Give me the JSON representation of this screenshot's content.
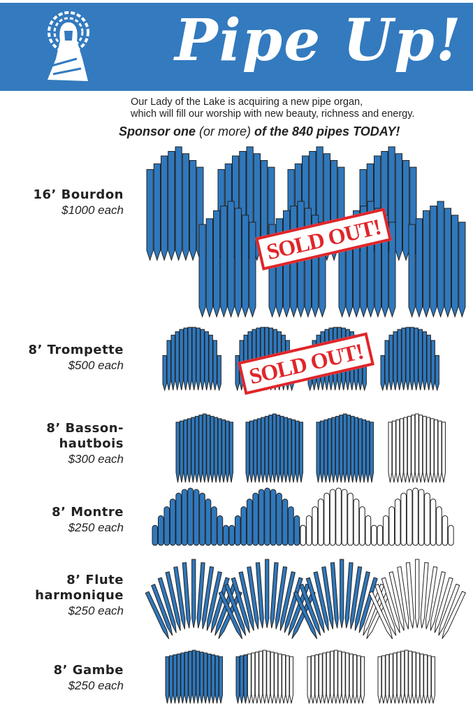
{
  "header": {
    "title": "Pipe Up!",
    "background": "#337abf"
  },
  "intro": {
    "line1": "Our Lady of the Lake is acquiring a new pipe organ,",
    "line2": "which will fill our worship with new beauty, richness and energy.",
    "sponsor_a": "Sponsor one",
    "sponsor_b": " (or more) ",
    "sponsor_c": "of the 840 pipes TODAY!"
  },
  "colors": {
    "pipe_fill": "#2f78bd",
    "pipe_empty": "#ffffff",
    "stamp": "#e0262a"
  },
  "ranks": [
    {
      "name": "16’ Bourdon",
      "price": "$1000 each",
      "status": "SOLD OUT!",
      "group_fill": [
        1,
        1,
        1,
        1,
        1,
        1,
        1,
        1
      ]
    },
    {
      "name": "8’ Trompette",
      "price": "$500 each",
      "status": "SOLD OUT!",
      "group_fill": [
        1,
        1,
        1,
        1
      ]
    },
    {
      "name_line1": "8’ Basson-",
      "name_line2": "hautbois",
      "price": "$300 each",
      "group_fill": [
        1,
        1,
        1,
        0
      ]
    },
    {
      "name": "8’ Montre",
      "price": "$250 each",
      "group_fill": [
        1,
        1,
        0,
        0
      ]
    },
    {
      "name_line1": "8’ Flute",
      "name_line2": "harmonique",
      "price": "$250 each",
      "group_fill": [
        1,
        1,
        0.85,
        0
      ]
    },
    {
      "name": "8’ Gambe",
      "price": "$250 each",
      "group_fill": [
        1,
        0.2,
        0,
        0
      ]
    }
  ]
}
